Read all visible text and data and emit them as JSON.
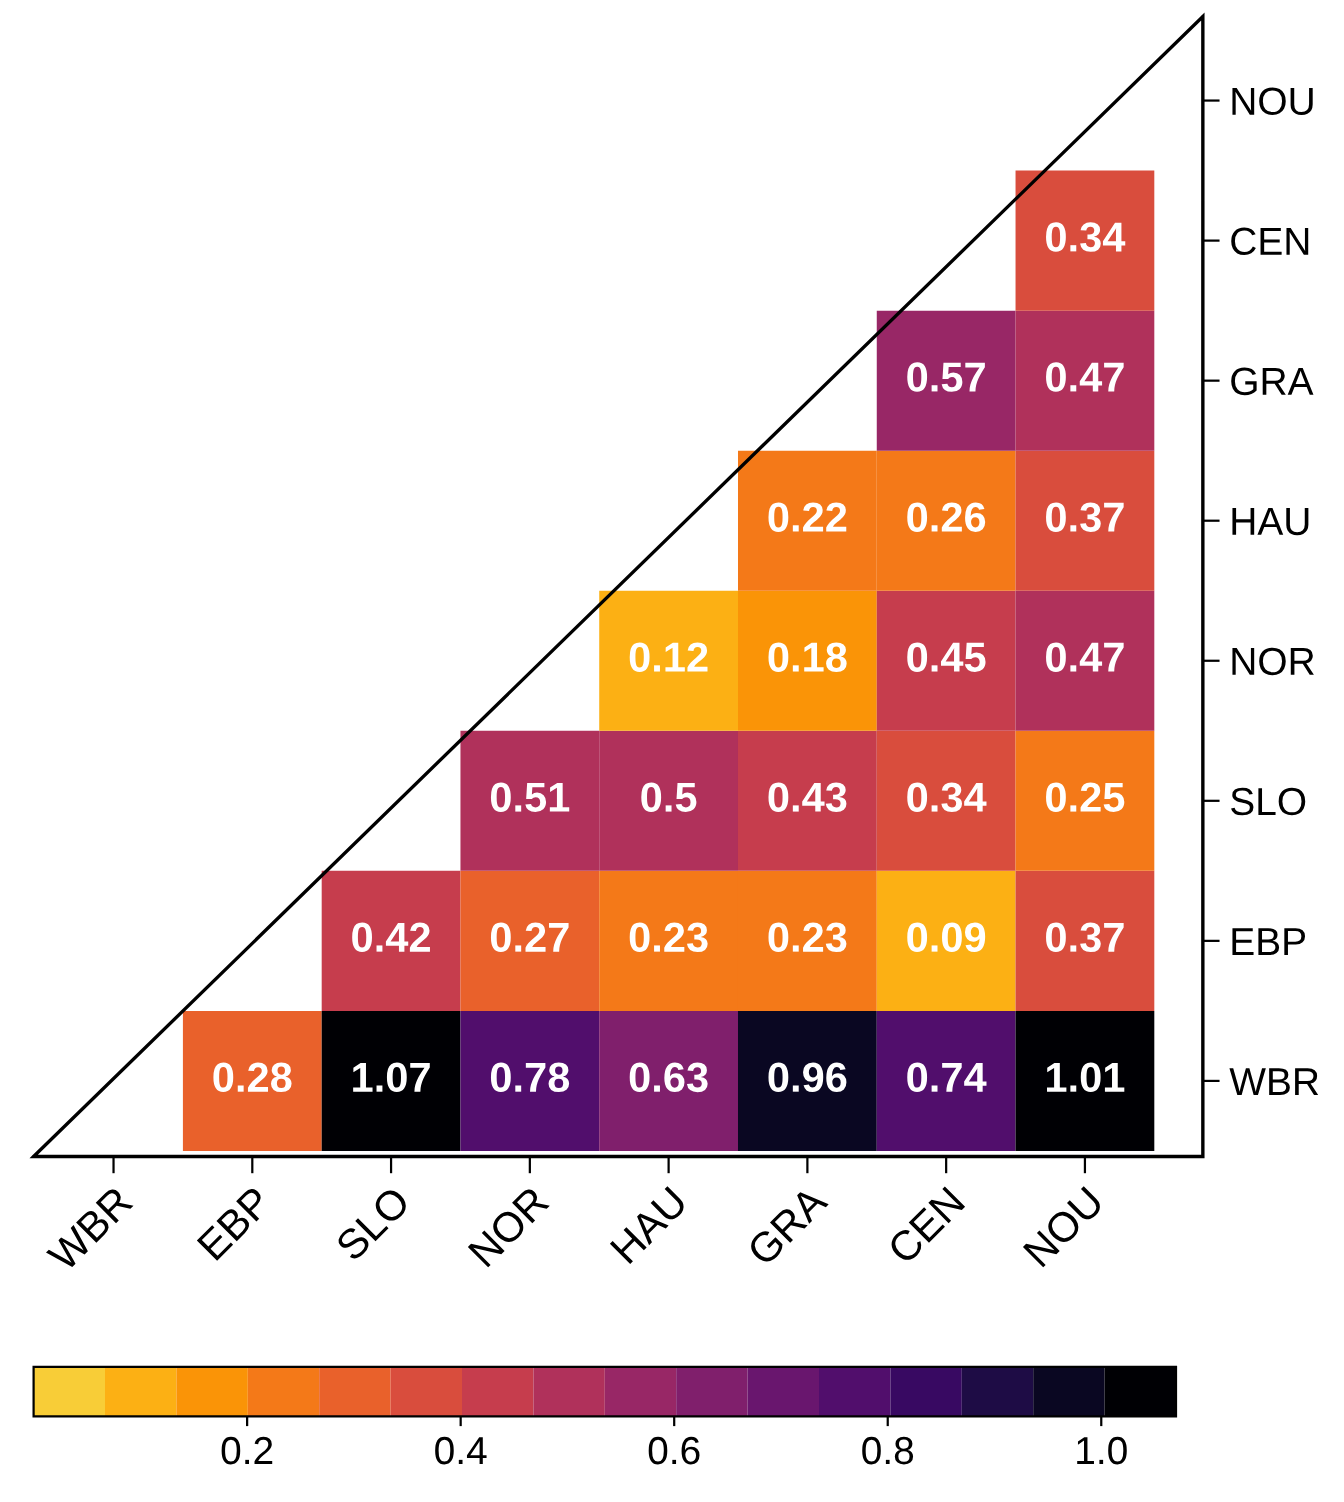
{
  "chart_data": {
    "type": "heatmap",
    "categories": [
      "WBR",
      "EBP",
      "SLO",
      "NOR",
      "HAU",
      "GRA",
      "CEN",
      "NOU"
    ],
    "y_categories": [
      "NOU",
      "CEN",
      "GRA",
      "HAU",
      "NOR",
      "SLO",
      "EBP",
      "WBR"
    ],
    "cells": [
      [
        null,
        null,
        null,
        null,
        null,
        null,
        null,
        null
      ],
      [
        null,
        null,
        null,
        null,
        null,
        null,
        null,
        0.34
      ],
      [
        null,
        null,
        null,
        null,
        null,
        null,
        0.57,
        0.47
      ],
      [
        null,
        null,
        null,
        null,
        null,
        0.22,
        0.26,
        0.37
      ],
      [
        null,
        null,
        null,
        null,
        0.12,
        0.18,
        0.45,
        0.47
      ],
      [
        null,
        null,
        null,
        0.51,
        0.5,
        0.43,
        0.34,
        0.25
      ],
      [
        null,
        null,
        0.42,
        0.27,
        0.23,
        0.23,
        0.09,
        0.37
      ],
      [
        null,
        0.28,
        1.07,
        0.78,
        0.63,
        0.96,
        0.74,
        1.01
      ]
    ],
    "data_labels": true,
    "clim": [
      0,
      1.07
    ],
    "cticks": [
      {
        "value": 0.2,
        "label": "0.2"
      },
      {
        "value": 0.4,
        "label": "0.4"
      },
      {
        "value": 0.6,
        "label": "0.6"
      },
      {
        "value": 0.8,
        "label": "0.8"
      },
      {
        "value": 1.0,
        "label": "1.0"
      }
    ]
  }
}
